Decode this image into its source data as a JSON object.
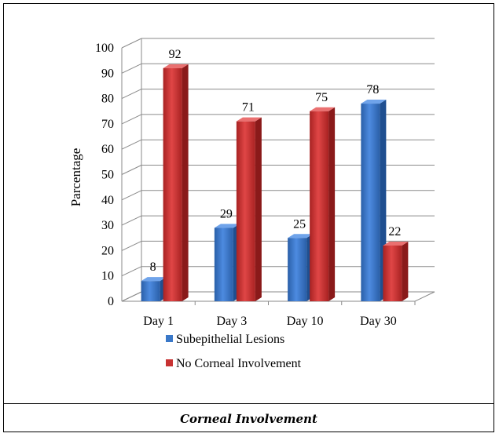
{
  "chart_data": {
    "type": "bar",
    "title": "",
    "ylabel": "Parcentage",
    "xlabel": "",
    "categories": [
      "Day 1",
      "Day 3",
      "Day 10",
      "Day 30"
    ],
    "ylim": [
      0,
      100
    ],
    "yticks": [
      "0",
      "10",
      "20",
      "30",
      "40",
      "50",
      "60",
      "70",
      "80",
      "90",
      "100"
    ],
    "grid": true,
    "legend_position": "bottom",
    "series": [
      {
        "name": "Subepithelial Lesions",
        "values": [
          8,
          29,
          25,
          78
        ],
        "color": "#3a78c8"
      },
      {
        "name": "No Corneal Involvement",
        "values": [
          92,
          71,
          75,
          22
        ],
        "color": "#c83232"
      }
    ]
  },
  "caption": "Corneal Involvement"
}
